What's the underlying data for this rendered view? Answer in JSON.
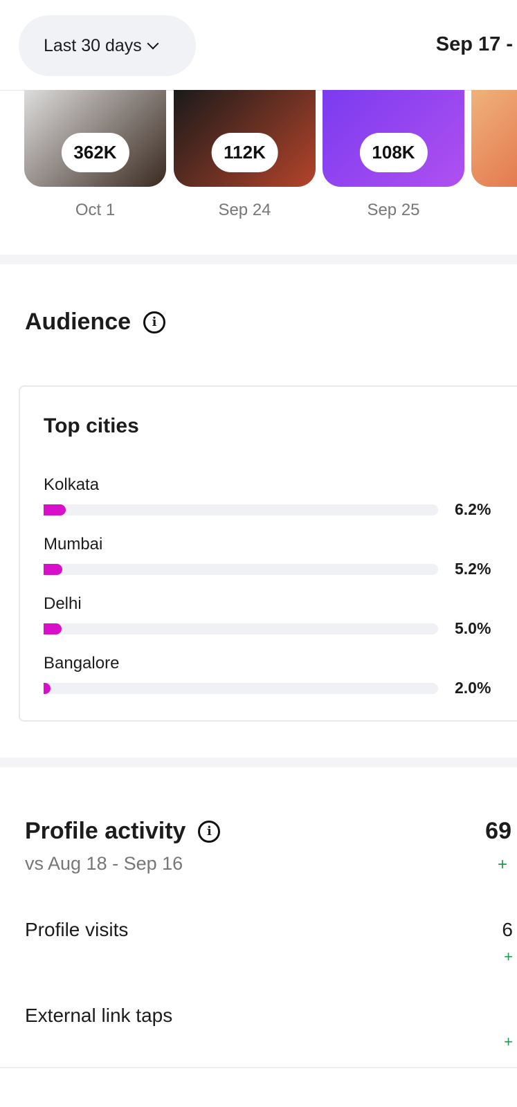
{
  "header": {
    "range_button": "Last 30 days",
    "date_range": "Sep 17 -"
  },
  "posts": [
    {
      "count": "362K",
      "date": "Oct 1",
      "colors": [
        "#ddd",
        "#3a2a20"
      ]
    },
    {
      "count": "112K",
      "date": "Sep 24",
      "colors": [
        "#1a1a1a",
        "#b4442a"
      ]
    },
    {
      "count": "108K",
      "date": "Sep 25",
      "colors": [
        "#7a3bf0",
        "#b050f0"
      ]
    },
    {
      "count": "",
      "date": "",
      "colors": [
        "#f0b27a",
        "#e37a4f"
      ]
    }
  ],
  "audience": {
    "title": "Audience",
    "card_title": "Top cities",
    "cities": [
      {
        "name": "Kolkata",
        "pct": "6.2%",
        "value": 6.2
      },
      {
        "name": "Mumbai",
        "pct": "5.2%",
        "value": 5.2
      },
      {
        "name": "Delhi",
        "pct": "5.0%",
        "value": 5.0
      },
      {
        "name": "Bangalore",
        "pct": "2.0%",
        "value": 2.0
      }
    ]
  },
  "profile_activity": {
    "title": "Profile activity",
    "compare": "vs Aug 18 - Sep 16",
    "total": "69",
    "total_change": "+",
    "rows": [
      {
        "label": "Profile visits",
        "value": "6",
        "change": "+"
      },
      {
        "label": "External link taps",
        "value": "",
        "change": "+"
      }
    ]
  },
  "colors": {
    "bar": "#d80fc9",
    "positive": "#1a9a4a"
  }
}
